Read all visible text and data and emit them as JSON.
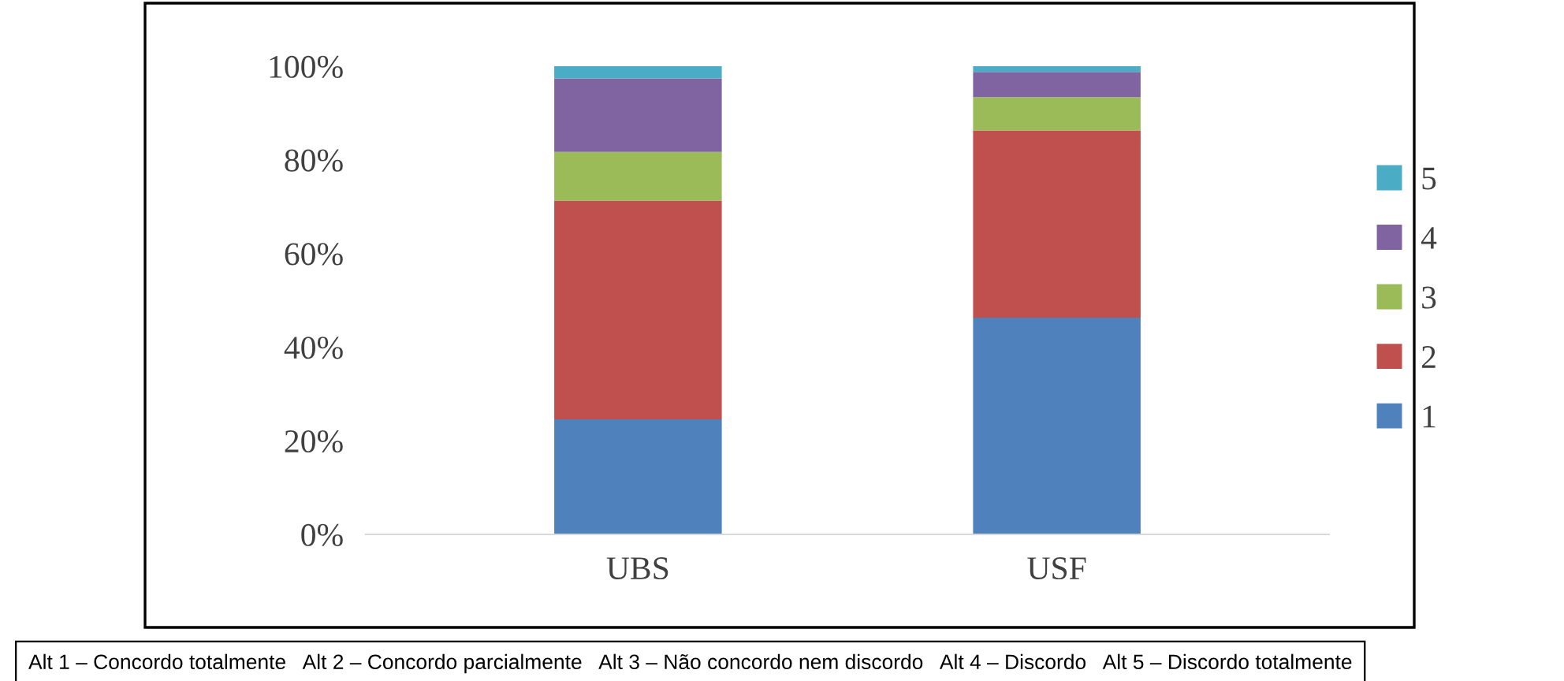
{
  "chart_data": {
    "type": "bar",
    "stacked": true,
    "categories": [
      "UBS",
      "USF"
    ],
    "series": [
      {
        "name": "1",
        "color": "#4f81bd",
        "values": [
          24.6,
          46.3
        ]
      },
      {
        "name": "2",
        "color": "#c0504d",
        "values": [
          46.7,
          40.0
        ]
      },
      {
        "name": "3",
        "color": "#9bbb59",
        "values": [
          10.4,
          7.1
        ]
      },
      {
        "name": "4",
        "color": "#8064a2",
        "values": [
          15.7,
          5.4
        ]
      },
      {
        "name": "5",
        "color": "#4bacc6",
        "values": [
          2.6,
          1.2
        ]
      }
    ],
    "ylim": [
      0,
      100
    ],
    "yticks": [
      {
        "value": 0,
        "label": "0%"
      },
      {
        "value": 20,
        "label": "20%"
      },
      {
        "value": 40,
        "label": "40%"
      },
      {
        "value": 60,
        "label": "60%"
      },
      {
        "value": 80,
        "label": "80%"
      },
      {
        "value": 100,
        "label": "100%"
      }
    ],
    "grid": false,
    "legend": "right",
    "annotations": [
      "Alt 1 – Concordo totalmente   Alt 2 – Concordo parcialmente   Alt 3 – Não concordo nem discordo   Alt 4 – Discordo   Alt 5 – Discordo totalmente"
    ]
  }
}
